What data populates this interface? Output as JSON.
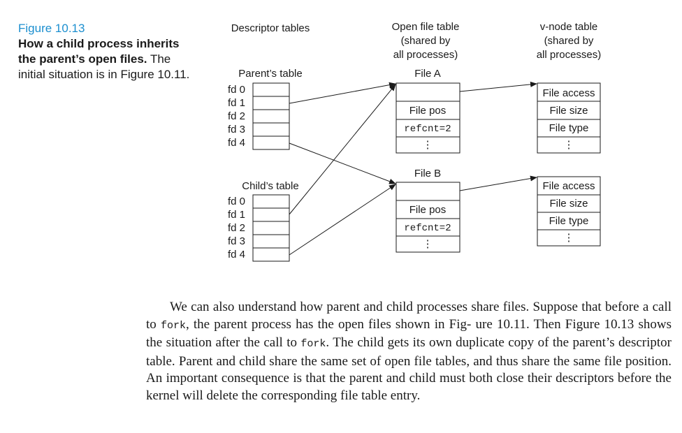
{
  "caption": {
    "label": "Figure 10.13",
    "bold": "How a child process inherits the parent’s open files.",
    "rest": "The initial situation is in Figure 10.11."
  },
  "headings": {
    "descriptor": "Descriptor tables",
    "open_file_1": "Open file table",
    "open_file_2": "(shared by",
    "open_file_3": "all processes)",
    "vnode_1": "v-node table",
    "vnode_2": "(shared by",
    "vnode_3": "all processes)"
  },
  "parent_table": {
    "title": "Parent’s table",
    "fds": [
      "fd 0",
      "fd 1",
      "fd 2",
      "fd 3",
      "fd 4"
    ]
  },
  "child_table": {
    "title": "Child’s table",
    "fds": [
      "fd 0",
      "fd 1",
      "fd 2",
      "fd 3",
      "fd 4"
    ]
  },
  "file_a": {
    "title": "File A",
    "pos": "File pos",
    "refcnt": "refcnt=2",
    "more": "⋮"
  },
  "file_b": {
    "title": "File B",
    "pos": "File pos",
    "refcnt": "refcnt=2",
    "more": "⋮"
  },
  "vnode_a": {
    "access": "File access",
    "size": "File size",
    "type": "File type",
    "more": "⋮"
  },
  "vnode_b": {
    "access": "File access",
    "size": "File size",
    "type": "File type",
    "more": "⋮"
  },
  "paragraph": {
    "t1": "We can also understand how parent and child processes share files. Suppose that before a call to ",
    "code1": "fork",
    "t2": ", the parent process has the open files shown in Fig- ure 10.11. Then Figure 10.13 shows the situation after the call to ",
    "code2": "fork",
    "t3": ". The child gets its own duplicate copy of the parent’s descriptor table. Parent and child share the same set of open file tables, and thus share the same file position. An important consequence is that the parent and child must both close their descriptors before the kernel will delete the corresponding file table entry."
  }
}
